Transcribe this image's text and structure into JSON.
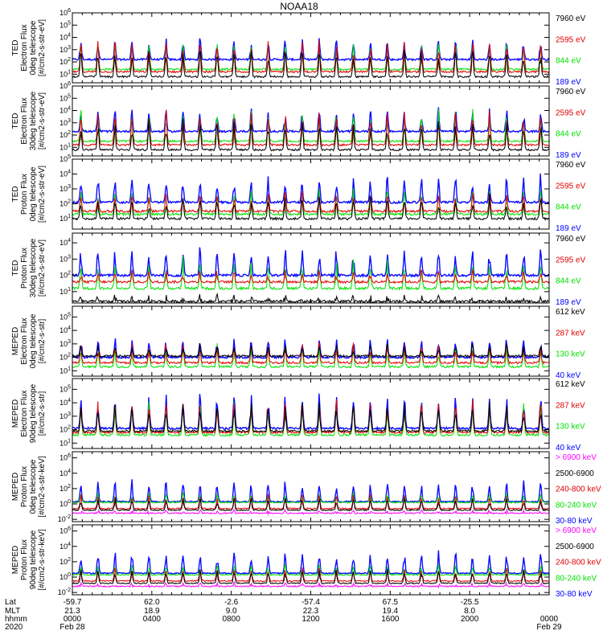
{
  "chart_data": {
    "type": "line",
    "title": "NOAA18",
    "colors": {
      "black": "#000000",
      "red": "#e00000",
      "green": "#00e000",
      "blue": "#0000ff",
      "magenta": "#ff00ff"
    },
    "panels": [
      {
        "ylabel": [
          "TED",
          "Electron Flux",
          "0deg telescope",
          "[#/cm2-s-str-eV]"
        ],
        "ticks": [
          1,
          2,
          3,
          4,
          5,
          6
        ],
        "ymin": 0.3,
        "ymax": 6,
        "legend": [
          {
            "text": "7960 eV",
            "color": "black"
          },
          {
            "text": "2595 eV",
            "color": "red"
          },
          {
            "text": "844 eV",
            "color": "green"
          },
          {
            "text": "189 eV",
            "color": "blue"
          }
        ],
        "base": {
          "blue": 2.2,
          "green": 1.4,
          "red": 1.2,
          "black": 0.8
        },
        "peak": {
          "blue": 3.9,
          "green": 3.6,
          "red": 3.8,
          "black": 3.1
        }
      },
      {
        "ylabel": [
          "TED",
          "Electron Flux",
          "30deg telescope",
          "[#/cm2-s-str-eV]"
        ],
        "ticks": [
          1,
          2,
          3,
          4,
          5,
          6
        ],
        "ymin": 0.3,
        "ymax": 6,
        "legend": [
          {
            "text": "7960 eV",
            "color": "black"
          },
          {
            "text": "2595 eV",
            "color": "red"
          },
          {
            "text": "844 eV",
            "color": "green"
          },
          {
            "text": "189 eV",
            "color": "blue"
          }
        ],
        "base": {
          "blue": 2.3,
          "green": 1.5,
          "red": 1.2,
          "black": 0.8
        },
        "peak": {
          "blue": 4.1,
          "green": 4.0,
          "red": 3.9,
          "black": 3.2
        }
      },
      {
        "ylabel": [
          "TED",
          "Proton Flux",
          "0deg telescope",
          "[#/cm2-s-str-eV]"
        ],
        "ticks": [
          1,
          2,
          3,
          4,
          5
        ],
        "ymin": 0.3,
        "ymax": 5,
        "legend": [
          {
            "text": "7960 eV",
            "color": "black"
          },
          {
            "text": "2595 eV",
            "color": "red"
          },
          {
            "text": "844 eV",
            "color": "green"
          },
          {
            "text": "189 eV",
            "color": "blue"
          }
        ],
        "base": {
          "blue": 2.1,
          "green": 1.3,
          "red": 1.5,
          "black": 1.0
        },
        "peak": {
          "blue": 3.8,
          "green": 3.0,
          "red": 2.7,
          "black": 2.4
        }
      },
      {
        "ylabel": [
          "TED",
          "Proton Flux",
          "30deg telescope",
          "[#/cm2-s-str-eV]"
        ],
        "ticks": [
          1,
          2,
          3,
          4
        ],
        "ymin": 0.3,
        "ymax": 4.6,
        "legend": [
          {
            "text": "7960 eV",
            "color": "black"
          },
          {
            "text": "2595 eV",
            "color": "red"
          },
          {
            "text": "844 eV",
            "color": "green"
          },
          {
            "text": "189 eV",
            "color": "blue"
          }
        ],
        "base": {
          "blue": 2.0,
          "green": 1.2,
          "red": 1.6,
          "black": 0.4
        },
        "peak": {
          "blue": 3.6,
          "green": 2.9,
          "red": 2.2,
          "black": 0.6
        }
      },
      {
        "ylabel": [
          "MEPED",
          "Electron Flux",
          "0deg telescope",
          "[#/cm2-s-str]"
        ],
        "ticks": [
          1,
          2,
          3,
          4,
          5
        ],
        "ymin": 0.6,
        "ymax": 5.8,
        "legend": [
          {
            "text": "612 keV",
            "color": "black"
          },
          {
            "text": "287 keV",
            "color": "red"
          },
          {
            "text": "130 keV",
            "color": "green"
          },
          {
            "text": "40 keV",
            "color": "blue"
          }
        ],
        "base": {
          "blue": 2.0,
          "green": 1.3,
          "red": 1.6,
          "black": 2.1
        },
        "peak": {
          "blue": 3.4,
          "green": 2.8,
          "red": 3.0,
          "black": 2.9
        }
      },
      {
        "ylabel": [
          "MEPED",
          "Electron Flux",
          "90deg telescope",
          "[#/cm2-s-str]"
        ],
        "ticks": [
          1,
          2,
          3,
          4,
          5
        ],
        "ymin": 0.6,
        "ymax": 5.8,
        "legend": [
          {
            "text": "612 keV",
            "color": "black"
          },
          {
            "text": "287 keV",
            "color": "red"
          },
          {
            "text": "130 keV",
            "color": "green"
          },
          {
            "text": "40 keV",
            "color": "blue"
          }
        ],
        "base": {
          "blue": 2.1,
          "green": 1.6,
          "red": 1.8,
          "black": 1.9
        },
        "peak": {
          "blue": 4.6,
          "green": 4.2,
          "red": 4.3,
          "black": 4.0
        }
      },
      {
        "ylabel": [
          "MEPED",
          "Proton Flux",
          "0deg telescope",
          "[#/cm2-s-str-keV]"
        ],
        "ticks": [
          -2,
          0,
          2,
          4,
          6
        ],
        "ymin": -2.3,
        "ymax": 6.8,
        "legend": [
          {
            "text": "> 6900 keV",
            "color": "magenta"
          },
          {
            "text": "2500-6900",
            "color": "black"
          },
          {
            "text": "240-800 keV",
            "color": "red"
          },
          {
            "text": "80-240 keV",
            "color": "green"
          },
          {
            "text": "30-80 keV",
            "color": "blue"
          }
        ],
        "base": {
          "blue": 0.3,
          "green": 0.2,
          "red": -0.6,
          "black": -0.8,
          "magenta": -1.2
        },
        "peak": {
          "blue": 3.0,
          "green": 1.4,
          "red": 1.2,
          "black": 0.8,
          "magenta": -0.9
        }
      },
      {
        "ylabel": [
          "MEPED",
          "Proton Flux",
          "90deg telescope",
          "[#/cm2-s-str-keV]"
        ],
        "ticks": [
          -2,
          0,
          2,
          4,
          6
        ],
        "ymin": -2.3,
        "ymax": 6.8,
        "legend": [
          {
            "text": "> 6900 keV",
            "color": "magenta"
          },
          {
            "text": "2500-6900",
            "color": "black"
          },
          {
            "text": "240-800 keV",
            "color": "red"
          },
          {
            "text": "80-240 keV",
            "color": "green"
          },
          {
            "text": "30-80 keV",
            "color": "blue"
          }
        ],
        "base": {
          "blue": 0.5,
          "green": 0.3,
          "red": -0.5,
          "black": -0.8,
          "magenta": -1.2
        },
        "peak": {
          "blue": 3.3,
          "green": 1.5,
          "red": 1.3,
          "black": 1.0,
          "magenta": -0.9
        }
      }
    ],
    "xaxis": {
      "row_labels": [
        "Lat",
        "MLT",
        "hhmm",
        "2020"
      ],
      "ticks": [
        {
          "frac": 0.0,
          "lat": "-59.7",
          "mlt": "21.3",
          "hhmm": "0000",
          "date": "Feb 28"
        },
        {
          "frac": 0.1667,
          "lat": "62.0",
          "mlt": "18.9",
          "hhmm": "0400",
          "date": ""
        },
        {
          "frac": 0.3333,
          "lat": "-2.6",
          "mlt": "9.0",
          "hhmm": "0800",
          "date": ""
        },
        {
          "frac": 0.5,
          "lat": "-57.4",
          "mlt": "22.3",
          "hhmm": "1200",
          "date": ""
        },
        {
          "frac": 0.6667,
          "lat": "67.5",
          "mlt": "19.4",
          "hhmm": "1600",
          "date": ""
        },
        {
          "frac": 0.8333,
          "lat": "-25.5",
          "mlt": "8.0",
          "hhmm": "2000",
          "date": ""
        },
        {
          "frac": 1.0,
          "lat": "",
          "mlt": "",
          "hhmm": "0000",
          "date": "Feb 29"
        }
      ]
    },
    "passes_per_day": 14
  }
}
